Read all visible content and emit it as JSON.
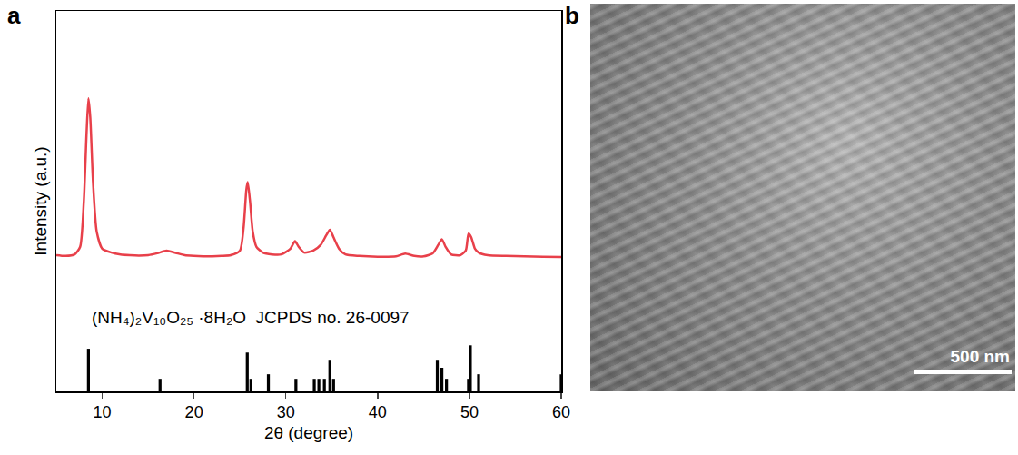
{
  "chart_data": {
    "type": "line",
    "panel_label": "a",
    "x_label": "2θ (degree)",
    "y_label": "Intensity (a.u.)",
    "xlim": [
      5,
      60
    ],
    "xticks": [
      10,
      20,
      30,
      40,
      50,
      60
    ],
    "ylim": [
      0,
      100
    ],
    "tick_labels": "x",
    "grid": false,
    "annotations": [
      "(NH₄)₂V₁₀O₂₅ ·8H₂O  JCPDS no. 26-0097"
    ],
    "series": [
      {
        "type": "line",
        "color": "#e8404a",
        "x": [
          5,
          6,
          7,
          7.6,
          8.0,
          8.3,
          8.5,
          8.7,
          9.0,
          9.4,
          10,
          11,
          12,
          13,
          14,
          15,
          16,
          17,
          18,
          19,
          20,
          21,
          22,
          23,
          24,
          25,
          25.4,
          25.7,
          25.85,
          26.1,
          26.4,
          26.8,
          27.5,
          28.5,
          29.5,
          30.5,
          31,
          31.4,
          32,
          33,
          33.8,
          34.4,
          34.8,
          35.2,
          35.8,
          36.5,
          38,
          40,
          42,
          43,
          44,
          45,
          46,
          46.6,
          47,
          47.4,
          48,
          49,
          49.6,
          49.9,
          50.2,
          50.6,
          51,
          52,
          54,
          56,
          58,
          60
        ],
        "values": [
          35.8,
          35.6,
          36,
          38,
          50,
          68,
          77,
          72,
          55,
          42,
          37.5,
          36.5,
          36,
          35.8,
          35.7,
          35.8,
          36.3,
          37,
          36.4,
          35.8,
          35.6,
          35.5,
          35.5,
          35.6,
          35.8,
          37,
          43,
          53,
          55,
          50,
          42,
          38,
          36.5,
          36,
          36,
          37.5,
          39.5,
          38,
          36.5,
          37,
          38.5,
          41,
          42.5,
          40.5,
          37.5,
          36,
          35.6,
          35.4,
          35.5,
          36.2,
          35.6,
          35.5,
          36.3,
          38.5,
          40,
          38,
          36,
          35.8,
          37,
          41.5,
          40.5,
          37.5,
          36.5,
          35.8,
          35.6,
          35.5,
          35.4,
          35.3
        ]
      },
      {
        "type": "bar",
        "color": "#000000",
        "x": [
          8.5,
          16.3,
          25.8,
          26.2,
          28.1,
          31.1,
          33.1,
          33.6,
          34.2,
          34.8,
          35.2,
          46.5,
          47.0,
          47.5,
          49.9,
          50.1,
          51.0,
          60
        ],
        "values": [
          11.2,
          3.3,
          10.2,
          3.3,
          4.5,
          3.3,
          3.3,
          3.3,
          3.3,
          8.3,
          3.3,
          8.3,
          6.2,
          3.3,
          3.3,
          12.1,
          4.5,
          4.5
        ]
      }
    ]
  },
  "image_panel": {
    "panel_label": "b",
    "scale_bar": "500 nm"
  }
}
